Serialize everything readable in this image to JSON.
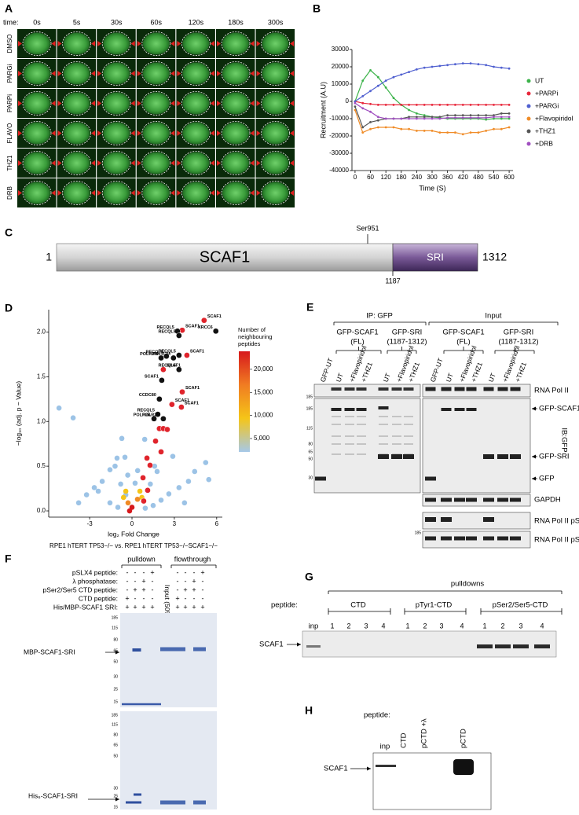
{
  "panel_a": {
    "label": "A",
    "time_label": "time:",
    "times": [
      "0s",
      "5s",
      "30s",
      "60s",
      "120s",
      "180s",
      "300s"
    ],
    "conditions": [
      "DMSO",
      "PARGi",
      "PARPi",
      "FLAVO",
      "THZ1",
      "DRB"
    ]
  },
  "chart_data": [
    {
      "type": "line",
      "panel": "B",
      "xlabel": "Time (S)",
      "ylabel": "Recruitment (A.U)",
      "x": [
        0,
        30,
        60,
        90,
        120,
        150,
        180,
        210,
        240,
        270,
        300,
        330,
        360,
        390,
        420,
        450,
        480,
        510,
        540,
        570,
        600
      ],
      "xlim": [
        -12,
        615
      ],
      "xticks": [
        0,
        60,
        120,
        180,
        240,
        300,
        360,
        420,
        480,
        540,
        600
      ],
      "ylim": [
        -40000,
        30000
      ],
      "yticks": [
        30000,
        20000,
        10000,
        0,
        -10000,
        -20000,
        -30000,
        -40000
      ],
      "series": [
        {
          "name": "UT",
          "color": "#3cb34a",
          "values": [
            0,
            12000,
            18000,
            14000,
            8000,
            2000,
            -2000,
            -5000,
            -7000,
            -8000,
            -9000,
            -9500,
            -10000,
            -10000,
            -10000,
            -10000,
            -10000,
            -10500,
            -10000,
            -10000,
            -10000
          ]
        },
        {
          "name": "+PARPi",
          "color": "#e8283c",
          "values": [
            0,
            -1000,
            -1500,
            -2000,
            -2000,
            -2000,
            -2000,
            -2000,
            -2000,
            -2000,
            -2000,
            -2000,
            -2000,
            -2000,
            -2000,
            -2000,
            -2000,
            -2000,
            -2000,
            -2000,
            -2000
          ]
        },
        {
          "name": "+PARGi",
          "color": "#5060d0",
          "values": [
            0,
            3000,
            6000,
            9000,
            12000,
            14000,
            15500,
            17000,
            18500,
            19500,
            20000,
            20500,
            21000,
            21500,
            22000,
            22000,
            21500,
            21000,
            20000,
            19500,
            19000
          ]
        },
        {
          "name": "+Flavopiridol",
          "color": "#f08c28",
          "values": [
            -5000,
            -18000,
            -16000,
            -15000,
            -15000,
            -15000,
            -16000,
            -16000,
            -17000,
            -17000,
            -17000,
            -18000,
            -18000,
            -18000,
            -19000,
            -18000,
            -18000,
            -17000,
            -16000,
            -16000,
            -15000
          ]
        },
        {
          "name": "+THZ1",
          "color": "#555555",
          "values": [
            -3000,
            -15000,
            -12000,
            -11000,
            -10000,
            -10000,
            -10000,
            -9000,
            -9000,
            -9000,
            -9000,
            -9000,
            -8000,
            -8000,
            -8000,
            -8000,
            -8000,
            -8000,
            -8000,
            -7000,
            -7000
          ]
        },
        {
          "name": "+DRB",
          "color": "#a050c0",
          "values": [
            -1000,
            -4000,
            -6000,
            -9000,
            -10000,
            -10000,
            -10000,
            -10000,
            -10000,
            -10000,
            -10000,
            -10000,
            -9500,
            -9500,
            -9500,
            -9500,
            -9500,
            -9500,
            -9000,
            -9000,
            -9000
          ]
        }
      ]
    },
    {
      "type": "scatter",
      "panel": "D",
      "xlabel": "log₂ Fold Change",
      "ylabel": "−log₁₀ (adj. p − Value)",
      "subtitle": "RPE1 hTERT TP53−/− vs. RPE1 hTERT TP53−/−SCAF1−/−",
      "xlim": [
        -5.9,
        6.4
      ],
      "xticks": [
        -3,
        0,
        3,
        6
      ],
      "ylim": [
        -0.07,
        2.25
      ],
      "yticks": [
        {
          "value": 0,
          "label": "0.0"
        },
        0.5,
        {
          "value": 1,
          "label": "1.0"
        },
        1.5,
        {
          "value": 2,
          "label": "2.0"
        }
      ],
      "series": [
        {
          "color": "#9cc3e6",
          "x": [
            -5.17,
            -4.17,
            -0.72,
            -1.06,
            -1.56,
            -2.11,
            -2.67,
            -3.22,
            5.22,
            5.44,
            4.44,
            4.0,
            3.33,
            2.61,
            2.06,
            1.5,
            -1.56,
            -1.0,
            0.94,
            -0.44,
            0.22,
            1.78,
            2.89,
            -2.39,
            3.72,
            -3.78,
            -0.8,
            -1.2,
            -0.5,
            1.3,
            1.6,
            0.9,
            -0.3,
            0.4
          ],
          "y": [
            1.15,
            1.04,
            0.81,
            0.59,
            0.46,
            0.33,
            0.26,
            0.18,
            0.54,
            0.35,
            0.44,
            0.33,
            0.26,
            0.19,
            0.12,
            0.06,
            0.09,
            0.04,
            0.03,
            0.18,
            0.31,
            0.44,
            0.61,
            0.22,
            0.09,
            0.09,
            0.3,
            0.5,
            0.6,
            0.3,
            0.5,
            0.8,
            0.4,
            0.45
          ]
        },
        {
          "color": "#f5c518",
          "x": [
            -0.44,
            0.56,
            -0.6,
            0.7
          ],
          "y": [
            0.22,
            0.22,
            0.15,
            0.15
          ]
        },
        {
          "color": "#f08a24",
          "x": [
            -0.28,
            0.39
          ],
          "y": [
            0.09,
            0.13
          ]
        },
        {
          "color": "#d7191c",
          "x": [
            0,
            -0.17
          ],
          "y": [
            0.04,
            0
          ]
        },
        {
          "color": "#e0242c",
          "x": [
            5.11,
            3.56,
            3.89,
            2.22,
            3.56,
            2.83,
            3.5,
            1.94,
            2.22,
            2.5,
            1.67,
            2.06,
            1.06,
            1.28,
            0.78,
            1.11,
            0.83
          ],
          "y": [
            2.13,
            2.02,
            1.74,
            1.58,
            1.33,
            1.19,
            1.16,
            0.92,
            0.92,
            0.91,
            0.78,
            0.66,
            0.59,
            0.51,
            0.37,
            0.23,
            0.11
          ],
          "labels": [
            "SCAF1",
            "SCAF1",
            "SCAF1",
            "SCAF1",
            "SCAF1",
            "SCAF1",
            "SCAF1",
            null,
            null,
            null,
            null,
            null,
            null,
            null,
            null,
            null,
            null
          ]
        },
        {
          "color": "#111111",
          "x": [
            3.22,
            5.94,
            3.33,
            3.33,
            2.94,
            2.44,
            2.06,
            3.33,
            2.11,
            1.94,
            1.83,
            1.56,
            2.22
          ],
          "y": [
            2.01,
            2.01,
            1.96,
            1.74,
            1.71,
            1.73,
            1.71,
            1.58,
            1.46,
            1.25,
            1.08,
            1.03,
            1.03
          ],
          "labels": [
            "RECQL5",
            "XRCC6",
            "RECQL5",
            "RECQL5",
            "POLR2M",
            "RECQL5",
            "POLR2M",
            "RECQL5",
            "SCAF1",
            "CCDC80",
            "RECQL5",
            "POLR2A",
            "POLR2M"
          ]
        }
      ],
      "colorbar": {
        "title": [
          "Number of",
          "neighbouring",
          "peptides"
        ],
        "lim": [
          2100,
          23900
        ],
        "colors": [
          "#d7191c",
          "#f07c22",
          "#f5c518",
          "#a6c8e8"
        ],
        "ticks": [
          {
            "value": 20000,
            "label": "20,000"
          },
          {
            "value": 15000,
            "label": "15,000"
          },
          {
            "value": 10000,
            "label": "10,000"
          },
          {
            "value": 5000,
            "label": "5,000"
          }
        ]
      }
    }
  ],
  "panel_c": {
    "label": "C",
    "protein": "SCAF1",
    "domain": "SRI",
    "start": 1,
    "end": 1312,
    "site": "Ser951",
    "domain_start": 1187
  },
  "panel_e": {
    "label": "E",
    "ip": "IP: GFP",
    "input": "Input",
    "constructs": [
      {
        "name": "GFP-SCAF1",
        "range": "(FL)"
      },
      {
        "name": "GFP-SRI",
        "range": "(1187-1312)"
      },
      {
        "name": "GFP-SCAF1",
        "range": "(FL)"
      },
      {
        "name": "GFP-SRI",
        "range": "(1187-1312)"
      }
    ],
    "lanes": [
      "GFP-UT",
      "UT",
      "+Flavopiridol",
      "+THZ1",
      "UT",
      "+Flavopiridol",
      "+THZ1",
      "GFP-UT",
      "UT",
      "+Flavopiridol",
      "+THZ1",
      "UT",
      "+Flavopiridol",
      "+THZ1"
    ],
    "blots": [
      "RNA Pol II",
      "GFP-SCAF1",
      "GFP-SRI",
      "GFP",
      "GAPDH",
      "RNA Pol II pSer2",
      "RNA Pol II pSer5"
    ],
    "antibody": "IB:GFP",
    "markers": [
      "185",
      "185",
      "115",
      "80",
      "65",
      "50",
      "30",
      "185"
    ]
  },
  "panel_f": {
    "label": "F",
    "pulldown": "pulldown",
    "flowthrough": "flowthrough",
    "rows": [
      {
        "name": "pSLX4 peptide:",
        "signs": [
          "-",
          "-",
          "-",
          "+",
          "-",
          "-",
          "-",
          "+"
        ]
      },
      {
        "name": "λ phosphatase:",
        "signs": [
          "-",
          "-",
          "+",
          "-",
          "-",
          "-",
          "+",
          "-"
        ]
      },
      {
        "name": "pSer2/Ser5 CTD peptide:",
        "signs": [
          "-",
          "+",
          "+",
          "-",
          "-",
          "+",
          "+",
          "-"
        ]
      },
      {
        "name": "CTD peptide:",
        "signs": [
          "+",
          "-",
          "-",
          "-",
          "+",
          "-",
          "-",
          "-"
        ]
      },
      {
        "name": "His/MBP-SCAF1 SRI:",
        "signs": [
          "+",
          "+",
          "+",
          "+",
          "+",
          "+",
          "+",
          "+"
        ]
      }
    ],
    "input": "Input (50%)",
    "bands": [
      "MBP-SCAF1-SRI",
      "His₆-SCAF1-SRI"
    ],
    "markers_top": [
      "185",
      "115",
      "80",
      "65",
      "50",
      "30",
      "25",
      "15"
    ],
    "markers_bottom": [
      "185",
      "115",
      "80",
      "65",
      "50",
      "30",
      "25",
      "15"
    ]
  },
  "panel_g": {
    "label": "G",
    "pulldowns": "pulldowns",
    "peptide": "peptide:",
    "input": "inp",
    "band": "SCAF1",
    "groups": [
      {
        "name": "CTD",
        "lanes": [
          "1",
          "2",
          "3",
          "4"
        ]
      },
      {
        "name": "pTyr1-CTD",
        "lanes": [
          "1",
          "2",
          "3",
          "4"
        ]
      },
      {
        "name": "pSer2/Ser5-CTD",
        "lanes": [
          "1",
          "2",
          "3",
          "4"
        ]
      }
    ]
  },
  "panel_h": {
    "label": "H",
    "peptide": "peptide:",
    "lanes": [
      "inp",
      "CTD",
      "pCTD +λ",
      "pCTD"
    ],
    "band": "SCAF1"
  }
}
